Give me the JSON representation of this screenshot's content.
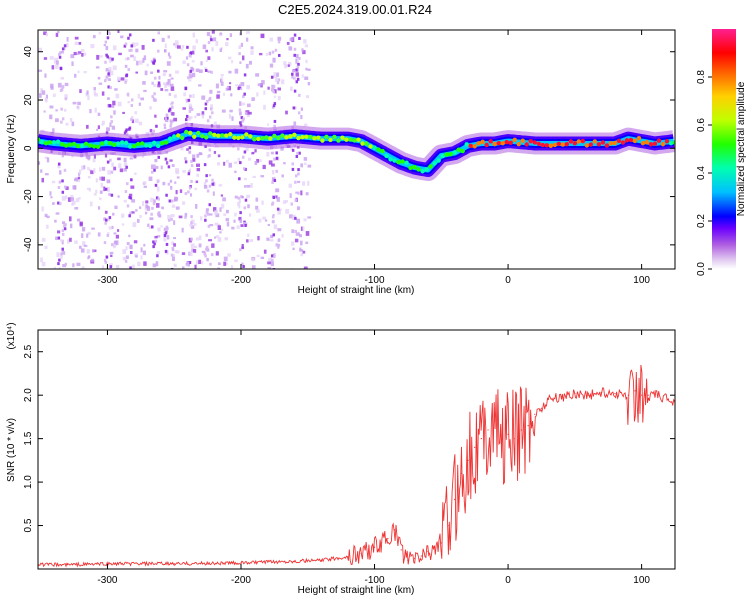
{
  "title": "C2E5.2024.319.00.01.R24",
  "chart_data": [
    {
      "type": "heatmap",
      "xlabel": "Height of straight line (km)",
      "ylabel": "Frequency (Hz)",
      "xlim": [
        -352,
        125
      ],
      "ylim": [
        -50,
        49
      ],
      "x_ticks": [
        -300,
        -200,
        -100,
        0,
        100
      ],
      "x_tick_labels": [
        "-300",
        "-200",
        "-100",
        "0",
        "100"
      ],
      "y_ticks": [
        -40,
        -20,
        0,
        20,
        40
      ],
      "y_tick_labels": [
        "-40",
        "-20",
        "0",
        "20",
        "40"
      ],
      "colorbar": {
        "label": "Normalized spectral amplitude",
        "range": [
          0,
          1
        ],
        "ticks": [
          0.0,
          0.2,
          0.4,
          0.6,
          0.8
        ],
        "tick_labels": [
          "0.0",
          "0.2",
          "0.4",
          "0.6",
          "0.8"
        ],
        "colormap": [
          "#ffffff",
          "#e0c8f0",
          "#b060e0",
          "#6a00ff",
          "#0000ff",
          "#00c0ff",
          "#00ffb0",
          "#20ff00",
          "#c0ff00",
          "#ffd000",
          "#ff6000",
          "#ff0000",
          "#ff0080",
          "#ff2090"
        ]
      },
      "ridge": {
        "x": [
          -352,
          -340,
          -320,
          -300,
          -280,
          -260,
          -250,
          -240,
          -220,
          -200,
          -180,
          -160,
          -140,
          -120,
          -110,
          -100,
          -90,
          -80,
          -70,
          -60,
          -50,
          -40,
          -30,
          -20,
          -10,
          0,
          20,
          40,
          60,
          80,
          90,
          100,
          110,
          125
        ],
        "y": [
          3,
          2,
          1,
          2,
          1,
          2,
          4,
          6,
          5,
          5,
          4,
          5,
          4,
          4,
          3,
          0,
          -3,
          -6,
          -8,
          -9,
          -3,
          -2,
          1,
          2,
          2,
          3,
          2,
          2,
          2,
          2,
          4,
          3,
          2,
          3
        ]
      },
      "grid": false
    },
    {
      "type": "line",
      "xlabel": "Height of straight line (km)",
      "ylabel": "SNR (10 * v/v)",
      "y_multiplier": "(x10⁴)",
      "xlim": [
        -352,
        125
      ],
      "ylim": [
        0,
        2.75
      ],
      "x_ticks": [
        -300,
        -200,
        -100,
        0,
        100
      ],
      "x_tick_labels": [
        "-300",
        "-200",
        "-100",
        "0",
        "100"
      ],
      "y_ticks": [
        0.5,
        1.0,
        1.5,
        2.0,
        2.5
      ],
      "y_tick_labels": [
        "0.5",
        "1.0",
        "1.5",
        "2.0",
        "2.5"
      ],
      "series": [
        {
          "color": "#ee3333",
          "x": [
            -352,
            -330,
            -300,
            -250,
            -200,
            -180,
            -160,
            -140,
            -120,
            -110,
            -100,
            -95,
            -90,
            -85,
            -80,
            -75,
            -70,
            -65,
            -60,
            -55,
            -50,
            -45,
            -40,
            -35,
            -30,
            -25,
            -20,
            -15,
            -10,
            -5,
            0,
            5,
            10,
            15,
            20,
            25,
            30,
            40,
            50,
            60,
            70,
            80,
            90,
            95,
            100,
            105,
            110,
            120,
            125
          ],
          "y": [
            0.05,
            0.05,
            0.06,
            0.06,
            0.07,
            0.08,
            0.09,
            0.1,
            0.14,
            0.18,
            0.25,
            0.3,
            0.35,
            0.45,
            0.22,
            0.1,
            0.12,
            0.15,
            0.2,
            0.25,
            0.3,
            0.5,
            0.8,
            1.1,
            1.25,
            1.4,
            1.5,
            1.6,
            1.7,
            1.45,
            1.55,
            1.5,
            1.6,
            1.65,
            1.78,
            1.85,
            1.95,
            1.98,
            2.02,
            2.0,
            2.03,
            2.02,
            2.0,
            2.05,
            2.0,
            2.0,
            2.0,
            1.95,
            1.92
          ]
        }
      ],
      "grid": false
    }
  ]
}
